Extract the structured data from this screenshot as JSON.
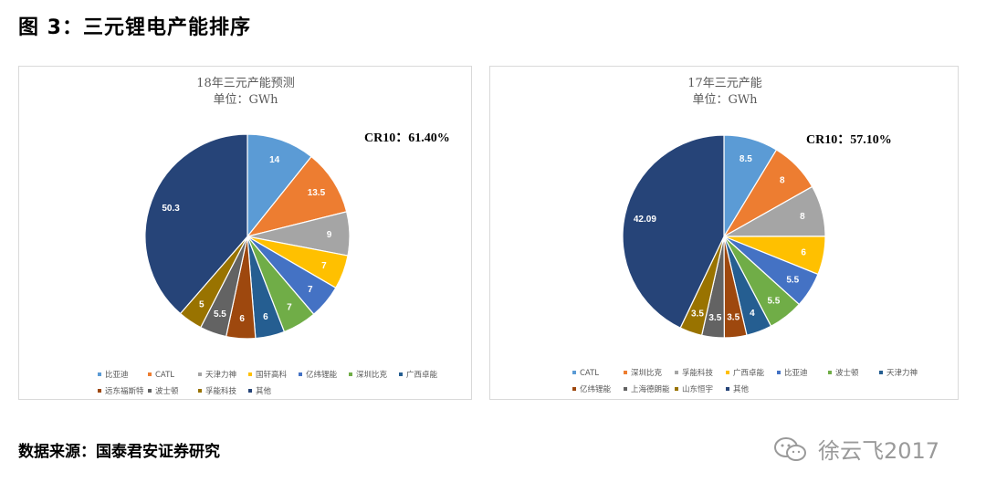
{
  "figure_title": "图 3：三元锂电产能排序",
  "source_note": "数据来源：国泰君安证券研究",
  "watermark_text": "徐云飞2017",
  "colors": {
    "blue": "#5B9BD5",
    "orange": "#ED7D31",
    "gray": "#A5A5A5",
    "gold": "#FFC000",
    "royal": "#4472C4",
    "green": "#70AD47",
    "steel": "#255E91",
    "brown": "#9E480E",
    "darkgray": "#636363",
    "olive": "#997300",
    "navy": "#264478"
  },
  "chart_data": [
    {
      "type": "pie",
      "title": "18年三元产能预测",
      "subtitle": "单位：GWh",
      "annotation": "CR10：61.40%",
      "slices": [
        {
          "name": "比亚迪",
          "value": 14,
          "label": "14",
          "color": "#5B9BD5"
        },
        {
          "name": "CATL",
          "value": 13.5,
          "label": "13.5",
          "color": "#ED7D31"
        },
        {
          "name": "天津力神",
          "value": 9,
          "label": "9",
          "color": "#A5A5A5"
        },
        {
          "name": "国轩高科",
          "value": 7,
          "label": "7",
          "color": "#FFC000"
        },
        {
          "name": "亿纬锂能",
          "value": 7,
          "label": "7",
          "color": "#4472C4"
        },
        {
          "name": "深圳比克",
          "value": 7,
          "label": "7",
          "color": "#70AD47"
        },
        {
          "name": "广西卓能",
          "value": 6,
          "label": "6",
          "color": "#255E91"
        },
        {
          "name": "远东福斯特",
          "value": 6,
          "label": "6",
          "color": "#9E480E"
        },
        {
          "name": "波士顿",
          "value": 5.5,
          "label": "5.5",
          "color": "#636363"
        },
        {
          "name": "孚能科技",
          "value": 5,
          "label": "5",
          "color": "#997300"
        },
        {
          "name": "其他",
          "value": 50.3,
          "label": "50.3",
          "color": "#264478"
        }
      ]
    },
    {
      "type": "pie",
      "title": "17年三元产能",
      "subtitle": "单位：GWh",
      "annotation": "CR10：57.10%",
      "slices": [
        {
          "name": "CATL",
          "value": 8.5,
          "label": "8.5",
          "color": "#5B9BD5"
        },
        {
          "name": "深圳比克",
          "value": 8,
          "label": "8",
          "color": "#ED7D31"
        },
        {
          "name": "孚能科技",
          "value": 8,
          "label": "8",
          "color": "#A5A5A5"
        },
        {
          "name": "广西卓能",
          "value": 6,
          "label": "6",
          "color": "#FFC000"
        },
        {
          "name": "比亚迪",
          "value": 5.5,
          "label": "5.5",
          "color": "#4472C4"
        },
        {
          "name": "波士顿",
          "value": 5.5,
          "label": "5.5",
          "color": "#70AD47"
        },
        {
          "name": "天津力神",
          "value": 4,
          "label": "4",
          "color": "#255E91"
        },
        {
          "name": "亿纬锂能",
          "value": 3.5,
          "label": "3.5",
          "color": "#9E480E"
        },
        {
          "name": "上海德朗能",
          "value": 3.5,
          "label": "3.5",
          "color": "#636363"
        },
        {
          "name": "山东恒宇",
          "value": 3.5,
          "label": "3.5",
          "color": "#997300"
        },
        {
          "name": "其他",
          "value": 42.09,
          "label": "42.09",
          "color": "#264478"
        }
      ]
    }
  ]
}
